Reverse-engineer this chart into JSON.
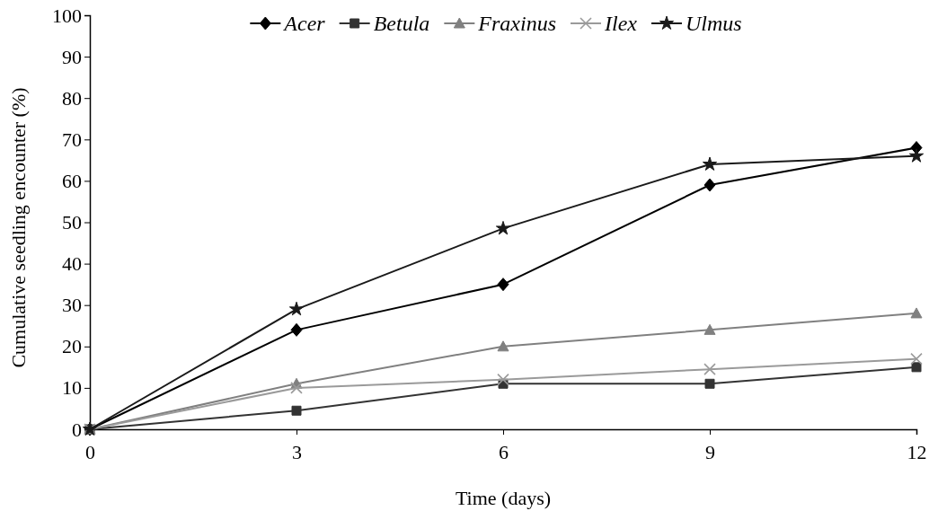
{
  "chart_data": {
    "type": "line",
    "xlabel": "Time (days)",
    "ylabel": "Cumulative seedling encounter (%)",
    "x": [
      0,
      3,
      6,
      9,
      12
    ],
    "xlim": [
      0,
      12
    ],
    "xticks": [
      0,
      3,
      6,
      9,
      12
    ],
    "ylim": [
      0,
      100
    ],
    "yticks": [
      0,
      10,
      20,
      30,
      40,
      50,
      60,
      70,
      80,
      90,
      100
    ],
    "grid": false,
    "legend": "top",
    "line_style": "solid",
    "series": [
      {
        "name": "Acer",
        "color": "#000000",
        "marker": "diamond",
        "values": [
          0,
          24,
          35,
          59,
          68
        ]
      },
      {
        "name": "Betula",
        "color": "#333333",
        "marker": "square",
        "values": [
          0,
          4.5,
          11,
          11,
          15
        ]
      },
      {
        "name": "Fraxinus",
        "color": "#808080",
        "marker": "triangle",
        "values": [
          0,
          11,
          20,
          24,
          28
        ]
      },
      {
        "name": "Ilex",
        "color": "#9a9a9a",
        "marker": "cross",
        "values": [
          0,
          10,
          12,
          14.5,
          17
        ]
      },
      {
        "name": "Ulmus",
        "color": "#1a1a1a",
        "marker": "star",
        "values": [
          0,
          29,
          48.5,
          64,
          66
        ]
      }
    ]
  }
}
